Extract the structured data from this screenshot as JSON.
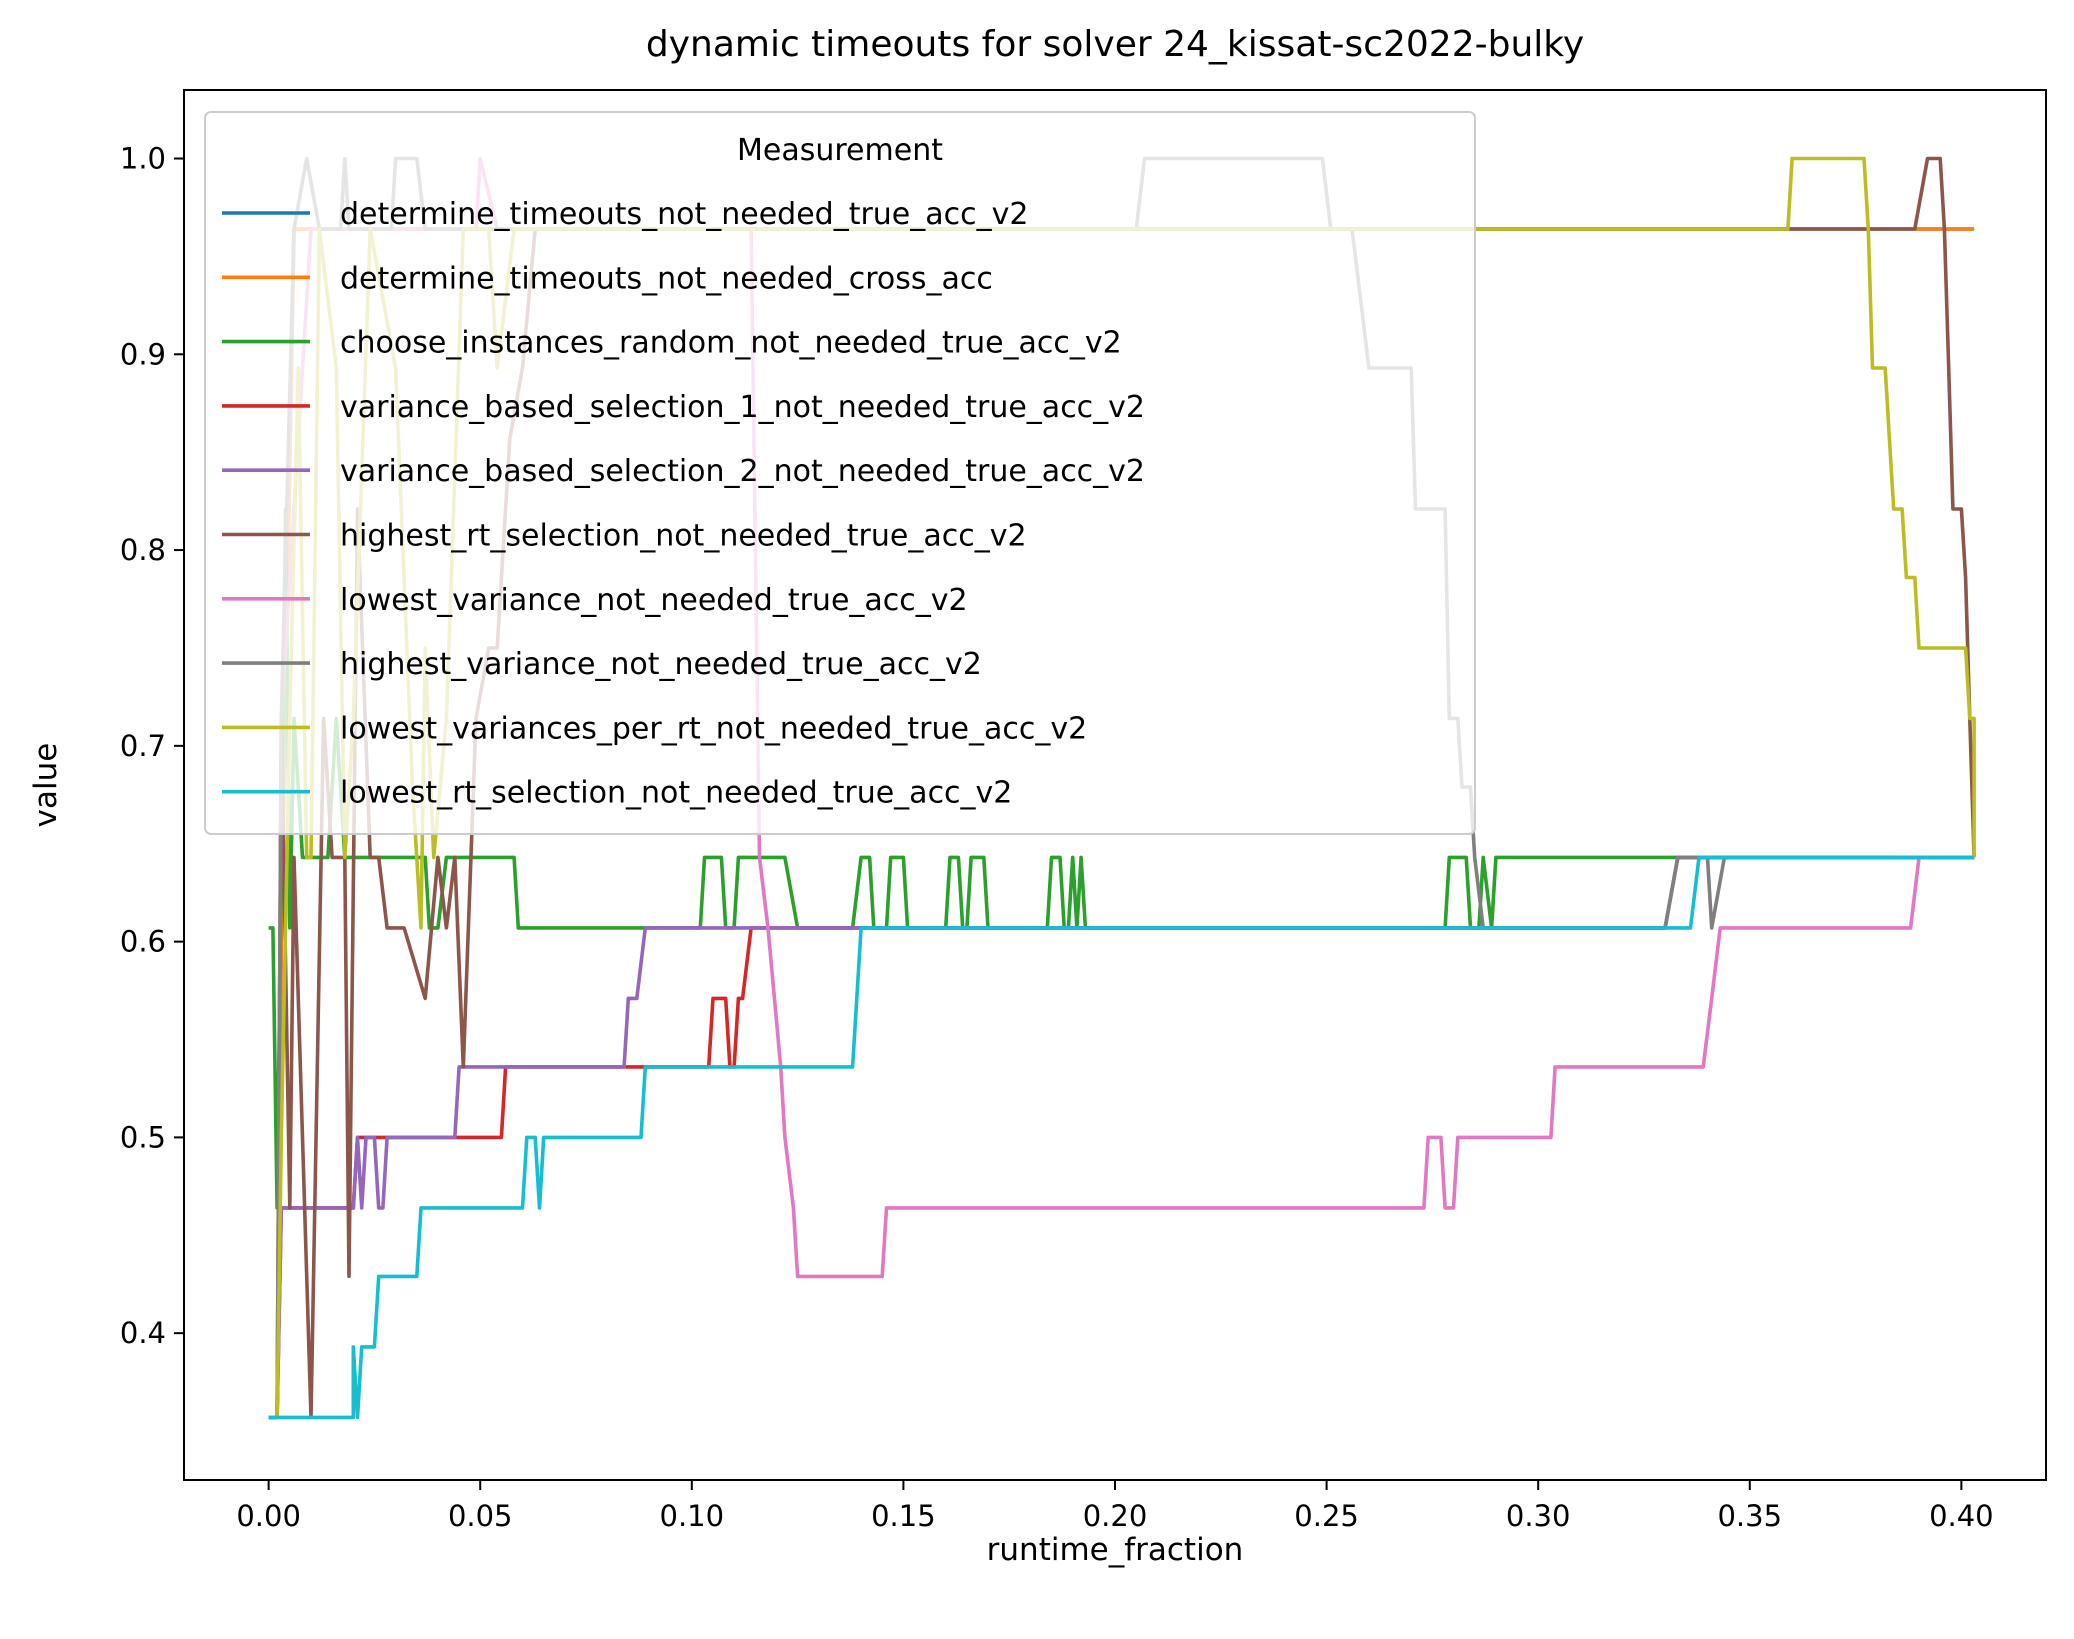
{
  "chart_data": {
    "type": "line",
    "title": "dynamic timeouts for solver 24_kissat-sc2022-bulky",
    "xlabel": "runtime_fraction",
    "ylabel": "value",
    "xlim": [
      -0.02,
      0.42
    ],
    "ylim": [
      0.325,
      1.035
    ],
    "xticks": [
      0.0,
      0.05,
      0.1,
      0.15,
      0.2,
      0.25,
      0.3,
      0.35,
      0.4
    ],
    "xtick_labels": [
      "0.00",
      "0.05",
      "0.10",
      "0.15",
      "0.20",
      "0.25",
      "0.30",
      "0.35",
      "0.40"
    ],
    "yticks": [
      0.4,
      0.5,
      0.6,
      0.7,
      0.8,
      0.9,
      1.0
    ],
    "ytick_labels": [
      "0.4",
      "0.5",
      "0.6",
      "0.7",
      "0.8",
      "0.9",
      "1.0"
    ],
    "grid": false,
    "legend": {
      "title": "Measurement",
      "placement": "upper-left"
    },
    "series": [
      {
        "name": "determine_timeouts_not_needed_true_acc_v2",
        "color": "#1f77b4",
        "points": [
          [
            0.0,
            0.357
          ],
          [
            0.002,
            0.357
          ],
          [
            0.003,
            0.607
          ],
          [
            0.006,
            0.964
          ],
          [
            0.403,
            0.964
          ]
        ]
      },
      {
        "name": "determine_timeouts_not_needed_cross_acc",
        "color": "#ff7f0e",
        "points": [
          [
            0.0,
            0.357
          ],
          [
            0.002,
            0.357
          ],
          [
            0.003,
            0.607
          ],
          [
            0.006,
            0.964
          ],
          [
            0.403,
            0.964
          ]
        ]
      },
      {
        "name": "choose_instances_random_not_needed_true_acc_v2",
        "color": "#2ca02c",
        "points": [
          [
            0.0,
            0.607
          ],
          [
            0.001,
            0.607
          ],
          [
            0.002,
            0.464
          ],
          [
            0.003,
            0.643
          ],
          [
            0.004,
            0.821
          ],
          [
            0.005,
            0.607
          ],
          [
            0.006,
            0.714
          ],
          [
            0.008,
            0.643
          ],
          [
            0.014,
            0.643
          ],
          [
            0.016,
            0.714
          ],
          [
            0.018,
            0.643
          ],
          [
            0.03,
            0.643
          ],
          [
            0.037,
            0.643
          ],
          [
            0.038,
            0.607
          ],
          [
            0.04,
            0.607
          ],
          [
            0.042,
            0.643
          ],
          [
            0.058,
            0.643
          ],
          [
            0.059,
            0.607
          ],
          [
            0.102,
            0.607
          ],
          [
            0.103,
            0.643
          ],
          [
            0.107,
            0.643
          ],
          [
            0.108,
            0.607
          ],
          [
            0.11,
            0.607
          ],
          [
            0.111,
            0.643
          ],
          [
            0.122,
            0.643
          ],
          [
            0.125,
            0.607
          ],
          [
            0.138,
            0.607
          ],
          [
            0.14,
            0.643
          ],
          [
            0.142,
            0.643
          ],
          [
            0.143,
            0.607
          ],
          [
            0.146,
            0.607
          ],
          [
            0.147,
            0.643
          ],
          [
            0.15,
            0.643
          ],
          [
            0.151,
            0.607
          ],
          [
            0.16,
            0.607
          ],
          [
            0.161,
            0.643
          ],
          [
            0.163,
            0.643
          ],
          [
            0.164,
            0.607
          ],
          [
            0.165,
            0.607
          ],
          [
            0.166,
            0.643
          ],
          [
            0.169,
            0.643
          ],
          [
            0.17,
            0.607
          ],
          [
            0.184,
            0.607
          ],
          [
            0.185,
            0.643
          ],
          [
            0.187,
            0.643
          ],
          [
            0.188,
            0.607
          ],
          [
            0.189,
            0.607
          ],
          [
            0.19,
            0.643
          ],
          [
            0.191,
            0.607
          ],
          [
            0.192,
            0.643
          ],
          [
            0.193,
            0.607
          ],
          [
            0.278,
            0.607
          ],
          [
            0.279,
            0.643
          ],
          [
            0.283,
            0.643
          ],
          [
            0.284,
            0.607
          ],
          [
            0.286,
            0.607
          ],
          [
            0.287,
            0.643
          ],
          [
            0.289,
            0.607
          ],
          [
            0.29,
            0.643
          ],
          [
            0.403,
            0.643
          ]
        ]
      },
      {
        "name": "variance_based_selection_1_not_needed_true_acc_v2",
        "color": "#d62728",
        "points": [
          [
            0.0,
            0.357
          ],
          [
            0.002,
            0.357
          ],
          [
            0.003,
            0.464
          ],
          [
            0.02,
            0.464
          ],
          [
            0.021,
            0.5
          ],
          [
            0.043,
            0.5
          ],
          [
            0.044,
            0.5
          ],
          [
            0.055,
            0.5
          ],
          [
            0.056,
            0.536
          ],
          [
            0.104,
            0.536
          ],
          [
            0.105,
            0.571
          ],
          [
            0.108,
            0.571
          ],
          [
            0.109,
            0.536
          ],
          [
            0.11,
            0.536
          ],
          [
            0.111,
            0.571
          ],
          [
            0.112,
            0.571
          ],
          [
            0.114,
            0.607
          ],
          [
            0.33,
            0.607
          ],
          [
            0.333,
            0.643
          ],
          [
            0.403,
            0.643
          ]
        ]
      },
      {
        "name": "variance_based_selection_2_not_needed_true_acc_v2",
        "color": "#9467bd",
        "points": [
          [
            0.0,
            0.357
          ],
          [
            0.002,
            0.357
          ],
          [
            0.003,
            0.464
          ],
          [
            0.02,
            0.464
          ],
          [
            0.021,
            0.5
          ],
          [
            0.022,
            0.464
          ],
          [
            0.023,
            0.5
          ],
          [
            0.025,
            0.5
          ],
          [
            0.026,
            0.464
          ],
          [
            0.027,
            0.464
          ],
          [
            0.028,
            0.5
          ],
          [
            0.044,
            0.5
          ],
          [
            0.045,
            0.536
          ],
          [
            0.084,
            0.536
          ],
          [
            0.085,
            0.571
          ],
          [
            0.087,
            0.571
          ],
          [
            0.089,
            0.607
          ],
          [
            0.33,
            0.607
          ],
          [
            0.333,
            0.643
          ],
          [
            0.403,
            0.643
          ]
        ]
      },
      {
        "name": "highest_rt_selection_not_needed_true_acc_v2",
        "color": "#8c564b",
        "points": [
          [
            0.0,
            0.357
          ],
          [
            0.002,
            0.357
          ],
          [
            0.003,
            0.714
          ],
          [
            0.005,
            0.464
          ],
          [
            0.006,
            0.643
          ],
          [
            0.01,
            0.357
          ],
          [
            0.013,
            0.714
          ],
          [
            0.015,
            0.643
          ],
          [
            0.018,
            0.643
          ],
          [
            0.019,
            0.429
          ],
          [
            0.021,
            0.821
          ],
          [
            0.024,
            0.643
          ],
          [
            0.026,
            0.643
          ],
          [
            0.028,
            0.607
          ],
          [
            0.032,
            0.607
          ],
          [
            0.037,
            0.571
          ],
          [
            0.04,
            0.643
          ],
          [
            0.042,
            0.607
          ],
          [
            0.044,
            0.643
          ],
          [
            0.046,
            0.536
          ],
          [
            0.049,
            0.714
          ],
          [
            0.052,
            0.75
          ],
          [
            0.054,
            0.75
          ],
          [
            0.057,
            0.857
          ],
          [
            0.06,
            0.893
          ],
          [
            0.063,
            0.964
          ],
          [
            0.389,
            0.964
          ],
          [
            0.392,
            1.0
          ],
          [
            0.395,
            1.0
          ],
          [
            0.396,
            0.964
          ],
          [
            0.397,
            0.893
          ],
          [
            0.398,
            0.821
          ],
          [
            0.4,
            0.821
          ],
          [
            0.401,
            0.786
          ],
          [
            0.402,
            0.714
          ],
          [
            0.403,
            0.643
          ]
        ]
      },
      {
        "name": "lowest_variance_not_needed_true_acc_v2",
        "color": "#e377c2",
        "points": [
          [
            0.0,
            0.357
          ],
          [
            0.002,
            0.357
          ],
          [
            0.003,
            0.714
          ],
          [
            0.01,
            0.964
          ],
          [
            0.049,
            0.964
          ],
          [
            0.05,
            1.0
          ],
          [
            0.054,
            0.964
          ],
          [
            0.09,
            0.964
          ],
          [
            0.103,
            0.964
          ],
          [
            0.114,
            0.964
          ],
          [
            0.116,
            0.643
          ],
          [
            0.118,
            0.607
          ],
          [
            0.121,
            0.536
          ],
          [
            0.122,
            0.5
          ],
          [
            0.124,
            0.464
          ],
          [
            0.125,
            0.429
          ],
          [
            0.145,
            0.429
          ],
          [
            0.146,
            0.464
          ],
          [
            0.273,
            0.464
          ],
          [
            0.274,
            0.5
          ],
          [
            0.277,
            0.5
          ],
          [
            0.278,
            0.464
          ],
          [
            0.28,
            0.464
          ],
          [
            0.281,
            0.5
          ],
          [
            0.303,
            0.5
          ],
          [
            0.304,
            0.536
          ],
          [
            0.339,
            0.536
          ],
          [
            0.341,
            0.571
          ],
          [
            0.343,
            0.607
          ],
          [
            0.388,
            0.607
          ],
          [
            0.39,
            0.643
          ],
          [
            0.403,
            0.643
          ]
        ]
      },
      {
        "name": "highest_variance_not_needed_true_acc_v2",
        "color": "#7f7f7f",
        "points": [
          [
            0.0,
            0.357
          ],
          [
            0.002,
            0.357
          ],
          [
            0.003,
            0.714
          ],
          [
            0.006,
            0.964
          ],
          [
            0.009,
            1.0
          ],
          [
            0.012,
            0.964
          ],
          [
            0.017,
            0.964
          ],
          [
            0.018,
            1.0
          ],
          [
            0.019,
            0.964
          ],
          [
            0.029,
            0.964
          ],
          [
            0.03,
            1.0
          ],
          [
            0.035,
            1.0
          ],
          [
            0.037,
            0.964
          ],
          [
            0.205,
            0.964
          ],
          [
            0.207,
            1.0
          ],
          [
            0.249,
            1.0
          ],
          [
            0.251,
            0.964
          ],
          [
            0.256,
            0.964
          ],
          [
            0.258,
            0.929
          ],
          [
            0.26,
            0.893
          ],
          [
            0.27,
            0.893
          ],
          [
            0.271,
            0.821
          ],
          [
            0.278,
            0.821
          ],
          [
            0.279,
            0.714
          ],
          [
            0.281,
            0.714
          ],
          [
            0.282,
            0.679
          ],
          [
            0.284,
            0.679
          ],
          [
            0.285,
            0.643
          ],
          [
            0.287,
            0.607
          ],
          [
            0.33,
            0.607
          ],
          [
            0.333,
            0.643
          ],
          [
            0.34,
            0.643
          ],
          [
            0.341,
            0.607
          ],
          [
            0.344,
            0.643
          ],
          [
            0.403,
            0.643
          ]
        ]
      },
      {
        "name": "lowest_variances_per_rt_not_needed_true_acc_v2",
        "color": "#bcbd22",
        "points": [
          [
            0.0,
            0.357
          ],
          [
            0.002,
            0.357
          ],
          [
            0.003,
            0.5
          ],
          [
            0.005,
            0.714
          ],
          [
            0.007,
            0.893
          ],
          [
            0.009,
            0.643
          ],
          [
            0.01,
            0.643
          ],
          [
            0.012,
            0.964
          ],
          [
            0.016,
            0.893
          ],
          [
            0.018,
            0.643
          ],
          [
            0.02,
            0.714
          ],
          [
            0.024,
            0.964
          ],
          [
            0.03,
            0.893
          ],
          [
            0.034,
            0.679
          ],
          [
            0.036,
            0.607
          ],
          [
            0.037,
            0.75
          ],
          [
            0.039,
            0.643
          ],
          [
            0.042,
            0.714
          ],
          [
            0.046,
            0.964
          ],
          [
            0.052,
            0.964
          ],
          [
            0.054,
            0.893
          ],
          [
            0.058,
            0.964
          ],
          [
            0.359,
            0.964
          ],
          [
            0.36,
            1.0
          ],
          [
            0.377,
            1.0
          ],
          [
            0.378,
            0.964
          ],
          [
            0.379,
            0.893
          ],
          [
            0.382,
            0.893
          ],
          [
            0.383,
            0.857
          ],
          [
            0.384,
            0.821
          ],
          [
            0.386,
            0.821
          ],
          [
            0.387,
            0.786
          ],
          [
            0.389,
            0.786
          ],
          [
            0.39,
            0.75
          ],
          [
            0.401,
            0.75
          ],
          [
            0.402,
            0.714
          ],
          [
            0.403,
            0.714
          ],
          [
            0.403,
            0.643
          ]
        ]
      },
      {
        "name": "lowest_rt_selection_not_needed_true_acc_v2",
        "color": "#17becf",
        "points": [
          [
            0.0,
            0.357
          ],
          [
            0.02,
            0.357
          ],
          [
            0.02,
            0.393
          ],
          [
            0.021,
            0.357
          ],
          [
            0.022,
            0.393
          ],
          [
            0.025,
            0.393
          ],
          [
            0.026,
            0.429
          ],
          [
            0.035,
            0.429
          ],
          [
            0.036,
            0.464
          ],
          [
            0.06,
            0.464
          ],
          [
            0.061,
            0.5
          ],
          [
            0.063,
            0.5
          ],
          [
            0.064,
            0.464
          ],
          [
            0.065,
            0.5
          ],
          [
            0.088,
            0.5
          ],
          [
            0.089,
            0.536
          ],
          [
            0.138,
            0.536
          ],
          [
            0.14,
            0.607
          ],
          [
            0.336,
            0.607
          ],
          [
            0.338,
            0.643
          ],
          [
            0.403,
            0.643
          ]
        ]
      }
    ]
  }
}
